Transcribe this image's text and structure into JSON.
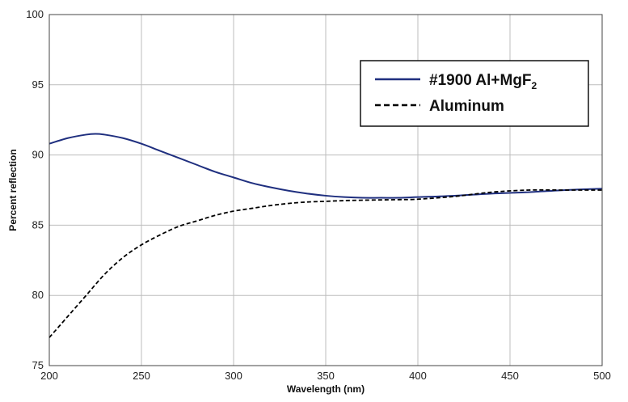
{
  "chart_data": {
    "type": "line",
    "title": "",
    "xlabel": "Wavelength (nm)",
    "ylabel": "Percent reflection",
    "xlim": [
      200,
      500
    ],
    "ylim": [
      75,
      100
    ],
    "xticks": [
      200,
      250,
      300,
      350,
      400,
      450,
      500
    ],
    "yticks": [
      75,
      80,
      85,
      90,
      95,
      100
    ],
    "grid": true,
    "legend_position": "top-right",
    "series": [
      {
        "name": "#1900 Al+MgF",
        "name_subscript": "2",
        "style": "solid",
        "color": "#1f2f7f",
        "x": [
          200,
          210,
          220,
          225,
          230,
          240,
          250,
          260,
          270,
          280,
          290,
          300,
          310,
          320,
          330,
          340,
          350,
          360,
          370,
          380,
          390,
          400,
          420,
          440,
          460,
          480,
          500
        ],
        "y": [
          90.8,
          91.2,
          91.45,
          91.5,
          91.45,
          91.2,
          90.8,
          90.3,
          89.8,
          89.3,
          88.8,
          88.4,
          88.0,
          87.7,
          87.45,
          87.25,
          87.1,
          87.0,
          86.95,
          86.95,
          86.95,
          87.0,
          87.1,
          87.25,
          87.35,
          87.5,
          87.6
        ]
      },
      {
        "name": "Aluminum",
        "style": "dashed",
        "color": "#000000",
        "x": [
          200,
          210,
          220,
          230,
          240,
          250,
          260,
          270,
          280,
          290,
          300,
          310,
          320,
          330,
          340,
          350,
          360,
          370,
          380,
          390,
          400,
          420,
          440,
          460,
          480,
          500
        ],
        "y": [
          77.0,
          78.5,
          80.0,
          81.5,
          82.7,
          83.6,
          84.3,
          84.9,
          85.3,
          85.7,
          86.0,
          86.2,
          86.4,
          86.55,
          86.65,
          86.7,
          86.75,
          86.78,
          86.8,
          86.82,
          86.85,
          87.05,
          87.35,
          87.5,
          87.5,
          87.5
        ]
      }
    ]
  }
}
